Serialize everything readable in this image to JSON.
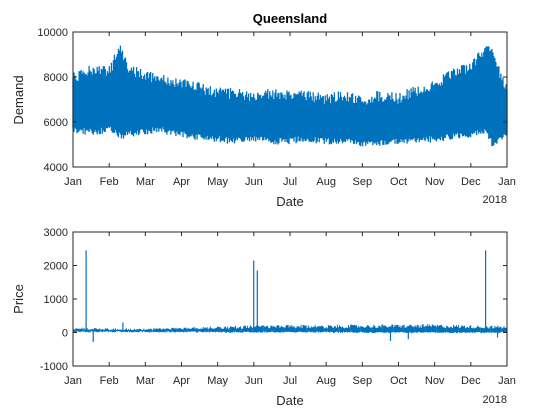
{
  "chart_data": [
    {
      "type": "line",
      "title": "Queensland",
      "xlabel": "Date",
      "ylabel": "Demand",
      "xlim": [
        "2017-01-01",
        "2018-01-01"
      ],
      "ylim": [
        4000,
        10000
      ],
      "yticks": [
        4000,
        6000,
        8000,
        10000
      ],
      "ytick_labels": [
        "4000",
        "6000",
        "8000",
        "10000"
      ],
      "xtick_labels": [
        "Jan",
        "Feb",
        "Mar",
        "Apr",
        "May",
        "Jun",
        "Jul",
        "Aug",
        "Sep",
        "Oct",
        "Nov",
        "Dec",
        "Jan"
      ],
      "x_secondary_label": "2018",
      "grid": false,
      "color": "#0072BD",
      "series": [
        {
          "x": [
            "2017-01-01",
            "2017-01-15",
            "2017-02-01",
            "2017-02-10",
            "2017-02-15",
            "2017-03-01",
            "2017-03-15",
            "2017-04-01",
            "2017-04-15",
            "2017-05-01",
            "2017-05-15",
            "2017-06-01",
            "2017-06-15",
            "2017-07-01",
            "2017-07-15",
            "2017-08-01",
            "2017-08-15",
            "2017-09-01",
            "2017-09-15",
            "2017-10-01",
            "2017-10-15",
            "2017-11-01",
            "2017-11-15",
            "2017-12-01",
            "2017-12-15",
            "2017-12-20",
            "2018-01-01"
          ],
          "low": [
            5500,
            5400,
            5500,
            5200,
            5300,
            5400,
            5500,
            5300,
            5200,
            5100,
            5000,
            5100,
            5000,
            5000,
            5100,
            5000,
            5000,
            4900,
            4900,
            5000,
            5000,
            5100,
            5200,
            5300,
            5400,
            4800,
            5300
          ],
          "high": [
            8200,
            8600,
            8500,
            9700,
            8700,
            8300,
            8200,
            8000,
            7800,
            7600,
            7500,
            7400,
            7500,
            7500,
            7400,
            7300,
            7400,
            7200,
            7400,
            7300,
            7600,
            7900,
            8400,
            8700,
            9500,
            9300,
            7600
          ]
        }
      ]
    },
    {
      "type": "line",
      "title": "",
      "xlabel": "Date",
      "ylabel": "Price",
      "xlim": [
        "2017-01-01",
        "2018-01-01"
      ],
      "ylim": [
        -1000,
        3000
      ],
      "yticks": [
        -1000,
        0,
        1000,
        2000,
        3000
      ],
      "ytick_labels": [
        "-1000",
        "0",
        "1000",
        "2000",
        "3000"
      ],
      "xtick_labels": [
        "Jan",
        "Feb",
        "Mar",
        "Apr",
        "May",
        "Jun",
        "Jul",
        "Aug",
        "Sep",
        "Oct",
        "Nov",
        "Dec",
        "Jan"
      ],
      "x_secondary_label": "2018",
      "grid": false,
      "color": "#0072BD",
      "series": [
        {
          "baseline_x": [
            "2017-01-01",
            "2017-03-01",
            "2017-06-01",
            "2017-08-01",
            "2017-09-15",
            "2017-11-01",
            "2017-12-01",
            "2018-01-01"
          ],
          "baseline_low": [
            40,
            40,
            30,
            30,
            20,
            20,
            20,
            20
          ],
          "baseline_high": [
            150,
            120,
            220,
            230,
            240,
            250,
            220,
            200
          ],
          "spikes": [
            {
              "x": "2017-01-12",
              "y": 2450
            },
            {
              "x": "2017-01-18",
              "y": -280
            },
            {
              "x": "2017-02-12",
              "y": 300
            },
            {
              "x": "2017-06-02",
              "y": 2150
            },
            {
              "x": "2017-06-05",
              "y": 1850
            },
            {
              "x": "2017-09-25",
              "y": -250
            },
            {
              "x": "2017-10-10",
              "y": -200
            },
            {
              "x": "2017-12-14",
              "y": 2450
            },
            {
              "x": "2017-12-24",
              "y": -150
            }
          ]
        }
      ]
    }
  ]
}
